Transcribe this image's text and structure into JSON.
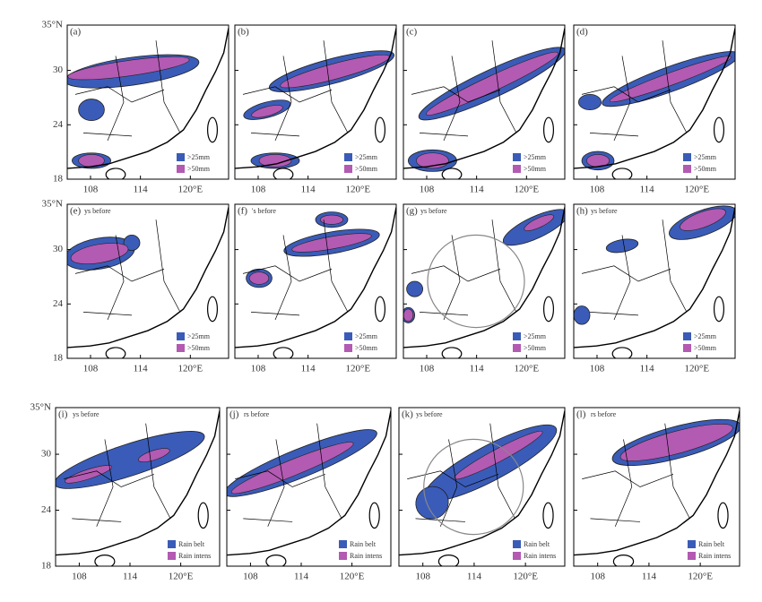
{
  "panels": [
    {
      "label": "(a)",
      "legend": [
        ">25mm",
        ">50mm"
      ]
    },
    {
      "label": "(b)",
      "legend": [
        ">25mm",
        ">50mm"
      ]
    },
    {
      "label": "(c)",
      "legend": [
        ">25mm",
        ">50mm"
      ]
    },
    {
      "label": "(d)",
      "legend": [
        ">25mm",
        ">50mm"
      ]
    },
    {
      "label": "(e)",
      "note": "ys before",
      "legend": [
        ">25mm",
        ">50mm"
      ]
    },
    {
      "label": "(f)",
      "note": "'s before",
      "legend": [
        ">25mm",
        ">50mm"
      ]
    },
    {
      "label": "(g)",
      "note": "ys before",
      "legend": [
        ">25mm",
        ">50mm"
      ]
    },
    {
      "label": "(h)",
      "note": "ys before",
      "legend": [
        ">25mm",
        ">50mm"
      ]
    },
    {
      "label": "(i)",
      "note": "ys before",
      "legend": [
        "Rain belt",
        "Rain intens"
      ]
    },
    {
      "label": "(j)",
      "note": "rs before",
      "legend": [
        "Rain belt",
        "Rain intens"
      ]
    },
    {
      "label": "(k)",
      "note": "ys before",
      "legend": [
        "Rain belt",
        "Rain intens"
      ]
    },
    {
      "label": "(l)",
      "note": "rs before",
      "legend": [
        "Rain belt",
        "Rain intens"
      ]
    }
  ],
  "lon_ticks": [
    108,
    114,
    {
      "value": 120,
      "label": "120°E"
    }
  ],
  "lat_ticks": [
    {
      "value": 35,
      "label": "35°N"
    },
    30,
    24,
    18
  ],
  "lonlim": [
    105.2,
    124.6
  ],
  "latlim": [
    18,
    35
  ],
  "colors": {
    "belt": "#3a5cb8",
    "intens": "#b35ab3"
  }
}
